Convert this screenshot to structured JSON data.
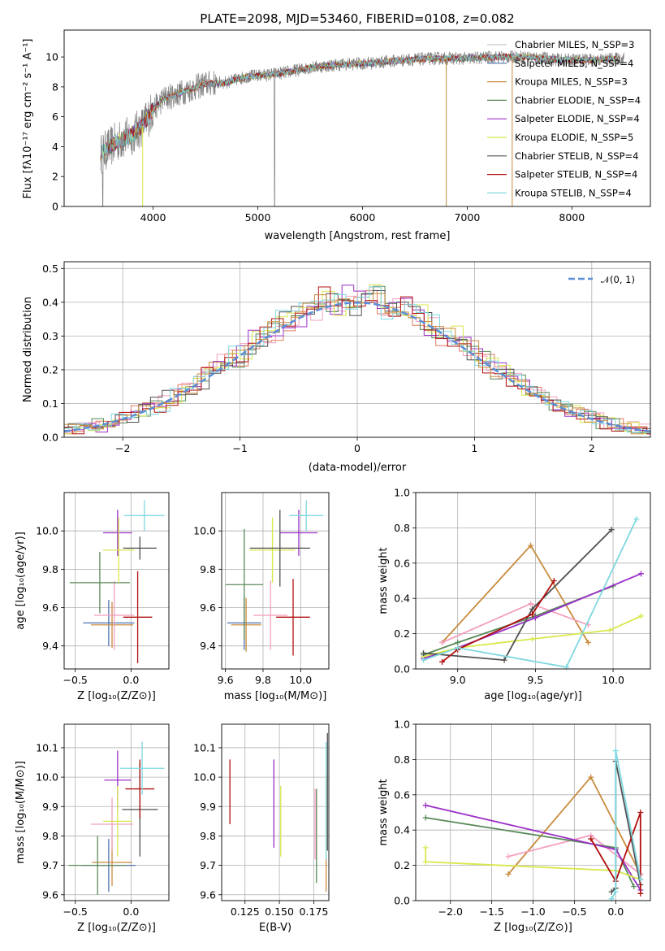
{
  "chart_data": [
    {
      "type": "line",
      "title": "PLATE=2098, MJD=53460, FIBERID=0108, z=0.082",
      "xlabel": "wavelength [Angstrom, rest frame]",
      "ylabel": "Flux [fλ10⁻¹⁷ erg cm⁻² s⁻¹ A⁻¹]",
      "xlim": [
        3150,
        8750
      ],
      "ylim": [
        0,
        11.8
      ],
      "xticks": [
        "4000",
        "5000",
        "6000",
        "7000",
        "8000"
      ],
      "yticks": [
        "0",
        "2",
        "4",
        "6",
        "8",
        "10"
      ],
      "grid": false,
      "legend_position": "upper-right",
      "data_color": "#808080",
      "continuum": {
        "x": [
          3500,
          3650,
          3800,
          3900,
          4000,
          4100,
          4300,
          4500,
          4700,
          4900,
          5100,
          5300,
          5500,
          5800,
          6100,
          6400,
          6700,
          7000,
          7300,
          7600,
          7900,
          8200,
          8500
        ],
        "y": [
          3.5,
          4.3,
          4.8,
          5.4,
          6.5,
          7.2,
          7.7,
          8.2,
          8.3,
          8.7,
          8.8,
          9.0,
          9.3,
          9.5,
          9.6,
          9.8,
          9.9,
          9.9,
          10.0,
          10.0,
          9.8,
          9.8,
          9.9
        ]
      },
      "series": [
        {
          "name": "Chabrier MILES, N_SSP=3",
          "color": "#c7c7c7"
        },
        {
          "name": "Salpeter MILES, N_SSP=4",
          "color": "#4c72b0"
        },
        {
          "name": "Kroupa MILES, N_SSP=3",
          "color": "#c98b3e"
        },
        {
          "name": "Chabrier ELODIE, N_SSP=4",
          "color": "#5a8a5a"
        },
        {
          "name": "Salpeter ELODIE, N_SSP=4",
          "color": "#9b30c8"
        },
        {
          "name": "Kroupa ELODIE, N_SSP=5",
          "color": "#d8e84a"
        },
        {
          "name": "Chabrier STELIB, N_SSP=4",
          "color": "#505050"
        },
        {
          "name": "Salpeter STELIB, N_SSP=4",
          "color": "#b01010"
        },
        {
          "name": "Kroupa STELIB, N_SSP=4",
          "color": "#7fd8e0"
        }
      ]
    },
    {
      "type": "line",
      "xlabel": "(data-model)/error",
      "ylabel": "Normed distribution",
      "xlim": [
        -2.5,
        2.5
      ],
      "ylim": [
        0,
        0.52
      ],
      "xticks": [
        "−2",
        "−1",
        "0",
        "1",
        "2"
      ],
      "yticks": [
        "0.0",
        "0.1",
        "0.2",
        "0.3",
        "0.4",
        "0.5"
      ],
      "grid": true,
      "legend_position": "upper-right",
      "gaussian_label": "𝒩(0, 1)",
      "gaussian_color": "#5b8ed6",
      "hist_colors": [
        "#e07a5f",
        "#f4a0c0",
        "#5a8a5a",
        "#9b30c8",
        "#d8e84a",
        "#505050",
        "#b01010",
        "#7fd8e0",
        "#c98b3e"
      ]
    },
    {
      "type": "scatter",
      "xlabel": "Z [log₁₀(Z/Z⊙)]",
      "ylabel": "age  [log₁₀(age/yr)]",
      "xlim": [
        -0.6,
        0.34
      ],
      "ylim": [
        9.28,
        10.2
      ],
      "xticks": [
        {
          "v": -0.5,
          "t": "−0.5"
        },
        {
          "v": 0.0,
          "t": "0.0"
        }
      ],
      "yticks": [
        {
          "v": 9.4,
          "t": "9.4"
        },
        {
          "v": 9.6,
          "t": "9.6"
        },
        {
          "v": 9.8,
          "t": "9.8"
        },
        {
          "v": 10.0,
          "t": "10.0"
        }
      ],
      "points": [
        {
          "x": -0.2,
          "xerr": 0.23,
          "y": 9.52,
          "yerr": 0.12,
          "color": "#4c72b0"
        },
        {
          "x": -0.17,
          "xerr": 0.19,
          "y": 9.51,
          "yerr": 0.12,
          "color": "#c98b3e"
        },
        {
          "x": -0.15,
          "xerr": 0.18,
          "y": 9.56,
          "yerr": 0.18,
          "color": "#f4a0c0"
        },
        {
          "x": -0.28,
          "xerr": 0.27,
          "y": 9.73,
          "yerr": 0.16,
          "color": "#5a8a5a"
        },
        {
          "x": -0.12,
          "xerr": 0.13,
          "y": 9.99,
          "yerr": 0.12,
          "color": "#9b30c8"
        },
        {
          "x": -0.11,
          "xerr": 0.14,
          "y": 9.9,
          "yerr": 0.17,
          "color": "#d8e84a"
        },
        {
          "x": 0.08,
          "xerr": 0.15,
          "y": 9.91,
          "yerr": 0.06,
          "color": "#505050"
        },
        {
          "x": 0.06,
          "xerr": 0.13,
          "y": 9.55,
          "yerr": 0.24,
          "color": "#b01010"
        },
        {
          "x": 0.12,
          "xerr": 0.18,
          "y": 10.08,
          "yerr": 0.08,
          "color": "#7fd8e0"
        }
      ]
    },
    {
      "type": "scatter",
      "xlabel": "mass [log₁₀(M/M⊙)]",
      "ylabel": "",
      "xlim": [
        9.58,
        10.15
      ],
      "ylim": [
        9.28,
        10.2
      ],
      "xticks": [
        {
          "v": 9.6,
          "t": "9.6"
        },
        {
          "v": 9.8,
          "t": "9.8"
        },
        {
          "v": 10.0,
          "t": "10.0"
        }
      ],
      "yticks": [
        {
          "v": 9.4,
          "t": "9.4"
        },
        {
          "v": 9.6,
          "t": "9.6"
        },
        {
          "v": 9.8,
          "t": "9.8"
        },
        {
          "v": 10.0,
          "t": "10.0"
        }
      ],
      "points": [
        {
          "x": 9.7,
          "xerr": 0.09,
          "y": 9.52,
          "yerr": 0.14,
          "color": "#4c72b0"
        },
        {
          "x": 9.71,
          "xerr": 0.08,
          "y": 9.51,
          "yerr": 0.14,
          "color": "#c98b3e"
        },
        {
          "x": 9.84,
          "xerr": 0.09,
          "y": 9.56,
          "yerr": 0.18,
          "color": "#f4a0c0"
        },
        {
          "x": 9.7,
          "xerr": 0.1,
          "y": 9.72,
          "yerr": 0.29,
          "color": "#5a8a5a"
        },
        {
          "x": 9.99,
          "xerr": 0.1,
          "y": 9.99,
          "yerr": 0.12,
          "color": "#9b30c8"
        },
        {
          "x": 9.85,
          "xerr": 0.12,
          "y": 9.9,
          "yerr": 0.17,
          "color": "#d8e84a"
        },
        {
          "x": 9.89,
          "xerr": 0.16,
          "y": 9.91,
          "yerr": 0.2,
          "color": "#505050"
        },
        {
          "x": 9.96,
          "xerr": 0.09,
          "y": 9.55,
          "yerr": 0.2,
          "color": "#b01010"
        },
        {
          "x": 10.03,
          "xerr": 0.09,
          "y": 10.08,
          "yerr": 0.08,
          "color": "#7fd8e0"
        }
      ]
    },
    {
      "type": "line",
      "xlabel": "age  [log₁₀(age/yr)]",
      "ylabel": "mass weight",
      "xlim": [
        8.73,
        10.24
      ],
      "ylim": [
        0,
        1.0
      ],
      "xticks": [
        {
          "v": 9.0,
          "t": "9.0"
        },
        {
          "v": 9.5,
          "t": "9.5"
        },
        {
          "v": 10.0,
          "t": "10.0"
        }
      ],
      "yticks": [
        {
          "v": 0,
          "t": "0.0"
        },
        {
          "v": 0.2,
          "t": "0.2"
        },
        {
          "v": 0.4,
          "t": "0.4"
        },
        {
          "v": 0.6,
          "t": "0.6"
        },
        {
          "v": 0.8,
          "t": "0.8"
        },
        {
          "v": 1.0,
          "t": "1.0"
        }
      ],
      "series": [
        {
          "color": "#c98b3e",
          "x": [
            8.9,
            9.47,
            9.84
          ],
          "y": [
            0.15,
            0.7,
            0.15
          ]
        },
        {
          "color": "#f4a0c0",
          "x": [
            8.9,
            9.47,
            9.84
          ],
          "y": [
            0.15,
            0.37,
            0.25
          ]
        },
        {
          "color": "#5a8a5a",
          "x": [
            8.78,
            9.0,
            9.5,
            10.0
          ],
          "y": [
            0.08,
            0.15,
            0.3,
            0.47
          ]
        },
        {
          "color": "#9b30c8",
          "x": [
            8.78,
            9.0,
            9.5,
            10.18
          ],
          "y": [
            0.06,
            0.12,
            0.29,
            0.54
          ]
        },
        {
          "color": "#d8e84a",
          "x": [
            8.78,
            9.0,
            9.48,
            9.98,
            10.18
          ],
          "y": [
            0.07,
            0.12,
            0.17,
            0.22,
            0.3
          ]
        },
        {
          "color": "#505050",
          "x": [
            8.78,
            9.3,
            9.48,
            9.99
          ],
          "y": [
            0.09,
            0.05,
            0.34,
            0.79
          ]
        },
        {
          "color": "#b01010",
          "x": [
            8.9,
            9.0,
            9.48,
            9.62
          ],
          "y": [
            0.04,
            0.11,
            0.31,
            0.5
          ]
        },
        {
          "color": "#7fd8e0",
          "x": [
            8.78,
            9.0,
            9.7,
            10.15
          ],
          "y": [
            0.05,
            0.12,
            0.01,
            0.85
          ]
        }
      ]
    },
    {
      "type": "scatter",
      "xlabel": "Z [log₁₀(Z/Z⊙)]",
      "ylabel": "mass [log₁₀(M/M⊙)]",
      "xlim": [
        -0.6,
        0.34
      ],
      "ylim": [
        9.58,
        10.18
      ],
      "xticks": [
        {
          "v": -0.5,
          "t": "−0.5"
        },
        {
          "v": 0.0,
          "t": "0.0"
        }
      ],
      "yticks": [
        {
          "v": 9.6,
          "t": "9.6"
        },
        {
          "v": 9.7,
          "t": "9.7"
        },
        {
          "v": 9.8,
          "t": "9.8"
        },
        {
          "v": 9.9,
          "t": "9.9"
        },
        {
          "v": 10.0,
          "t": "10.0"
        },
        {
          "v": 10.1,
          "t": "10.1"
        }
      ],
      "points": [
        {
          "x": -0.2,
          "xerr": 0.24,
          "y": 9.7,
          "yerr": 0.09,
          "color": "#4c72b0"
        },
        {
          "x": -0.17,
          "xerr": 0.18,
          "y": 9.71,
          "yerr": 0.08,
          "color": "#c98b3e"
        },
        {
          "x": -0.17,
          "xerr": 0.19,
          "y": 9.84,
          "yerr": 0.09,
          "color": "#f4a0c0"
        },
        {
          "x": -0.3,
          "xerr": 0.26,
          "y": 9.7,
          "yerr": 0.1,
          "color": "#5a8a5a"
        },
        {
          "x": -0.12,
          "xerr": 0.12,
          "y": 9.99,
          "yerr": 0.1,
          "color": "#9b30c8"
        },
        {
          "x": -0.12,
          "xerr": 0.13,
          "y": 9.85,
          "yerr": 0.12,
          "color": "#d8e84a"
        },
        {
          "x": 0.08,
          "xerr": 0.16,
          "y": 9.89,
          "yerr": 0.16,
          "color": "#505050"
        },
        {
          "x": 0.08,
          "xerr": 0.13,
          "y": 9.96,
          "yerr": 0.1,
          "color": "#b01010"
        },
        {
          "x": 0.1,
          "xerr": 0.2,
          "y": 10.03,
          "yerr": 0.09,
          "color": "#7fd8e0"
        }
      ]
    },
    {
      "type": "scatter",
      "xlabel": "E(B-V)",
      "ylabel": "",
      "xlim": [
        0.108,
        0.186
      ],
      "ylim": [
        9.58,
        10.18
      ],
      "xticks": [
        {
          "v": 0.125,
          "t": "0.125"
        },
        {
          "v": 0.15,
          "t": "0.150"
        },
        {
          "v": 0.175,
          "t": "0.175"
        }
      ],
      "yticks": [
        {
          "v": 9.6,
          "t": "9.6"
        },
        {
          "v": 9.7,
          "t": "9.7"
        },
        {
          "v": 9.8,
          "t": "9.8"
        },
        {
          "v": 9.9,
          "t": "9.9"
        },
        {
          "v": 10.0,
          "t": "10.0"
        },
        {
          "v": 10.1,
          "t": "10.1"
        }
      ],
      "points": [
        {
          "x": 0.114,
          "y": 9.95,
          "yerr": 0.11,
          "color": "#b01010"
        },
        {
          "x": 0.146,
          "y": 9.91,
          "yerr": 0.15,
          "color": "#9b30c8"
        },
        {
          "x": 0.151,
          "y": 9.85,
          "yerr": 0.12,
          "color": "#d8e84a"
        },
        {
          "x": 0.176,
          "y": 9.84,
          "yerr": 0.12,
          "color": "#f4a0c0"
        },
        {
          "x": 0.177,
          "y": 9.8,
          "yerr": 0.16,
          "color": "#5a8a5a"
        },
        {
          "x": 0.184,
          "y": 9.81,
          "yerr": 0.2,
          "color": "#c98b3e"
        },
        {
          "x": 0.185,
          "y": 9.95,
          "yerr": 0.2,
          "color": "#505050"
        },
        {
          "x": 0.184,
          "y": 9.92,
          "yerr": 0.2,
          "color": "#7fd8e0"
        }
      ]
    },
    {
      "type": "line",
      "xlabel": "Z [log₁₀(Z/Z⊙)]",
      "ylabel": "mass weight",
      "xlim": [
        -2.42,
        0.42
      ],
      "ylim": [
        0,
        1.0
      ],
      "xticks": [
        {
          "v": -2.0,
          "t": "−2.0"
        },
        {
          "v": -1.5,
          "t": "−1.5"
        },
        {
          "v": -1.0,
          "t": "−1.0"
        },
        {
          "v": -0.5,
          "t": "−0.5"
        },
        {
          "v": 0.0,
          "t": "0.0"
        }
      ],
      "yticks": [
        {
          "v": 0,
          "t": "0.0"
        },
        {
          "v": 0.2,
          "t": "0.2"
        },
        {
          "v": 0.4,
          "t": "0.4"
        },
        {
          "v": 0.6,
          "t": "0.6"
        },
        {
          "v": 0.8,
          "t": "0.8"
        },
        {
          "v": 1.0,
          "t": "1.0"
        }
      ],
      "series": [
        {
          "color": "#c98b3e",
          "x": [
            -1.3,
            -0.3,
            0.3
          ],
          "y": [
            0.15,
            0.7,
            0.15
          ]
        },
        {
          "color": "#f4a0c0",
          "x": [
            -1.3,
            -0.3,
            0.3
          ],
          "y": [
            0.25,
            0.37,
            0.15
          ]
        },
        {
          "color": "#5a8a5a",
          "x": [
            -2.3,
            0.0,
            0.22
          ],
          "y": [
            0.47,
            0.3,
            0.08
          ]
        },
        {
          "color": "#9b30c8",
          "x": [
            -2.3,
            0.0,
            0.3
          ],
          "y": [
            0.54,
            0.29,
            0.06
          ]
        },
        {
          "color": "#d8e84a",
          "x": [
            -2.3,
            -2.3,
            0.0,
            0.3
          ],
          "y": [
            0.3,
            0.22,
            0.17,
            0.12
          ]
        },
        {
          "color": "#505050",
          "x": [
            -0.05,
            0.0,
            0.0,
            0.3
          ],
          "y": [
            0.05,
            0.07,
            0.79,
            0.09
          ]
        },
        {
          "color": "#b01010",
          "x": [
            -0.3,
            0.0,
            0.3,
            0.3
          ],
          "y": [
            0.35,
            0.11,
            0.5,
            0.04
          ]
        },
        {
          "color": "#7fd8e0",
          "x": [
            -0.05,
            0.0,
            0.0,
            0.3
          ],
          "y": [
            0.01,
            0.05,
            0.85,
            0.12
          ]
        }
      ]
    }
  ]
}
